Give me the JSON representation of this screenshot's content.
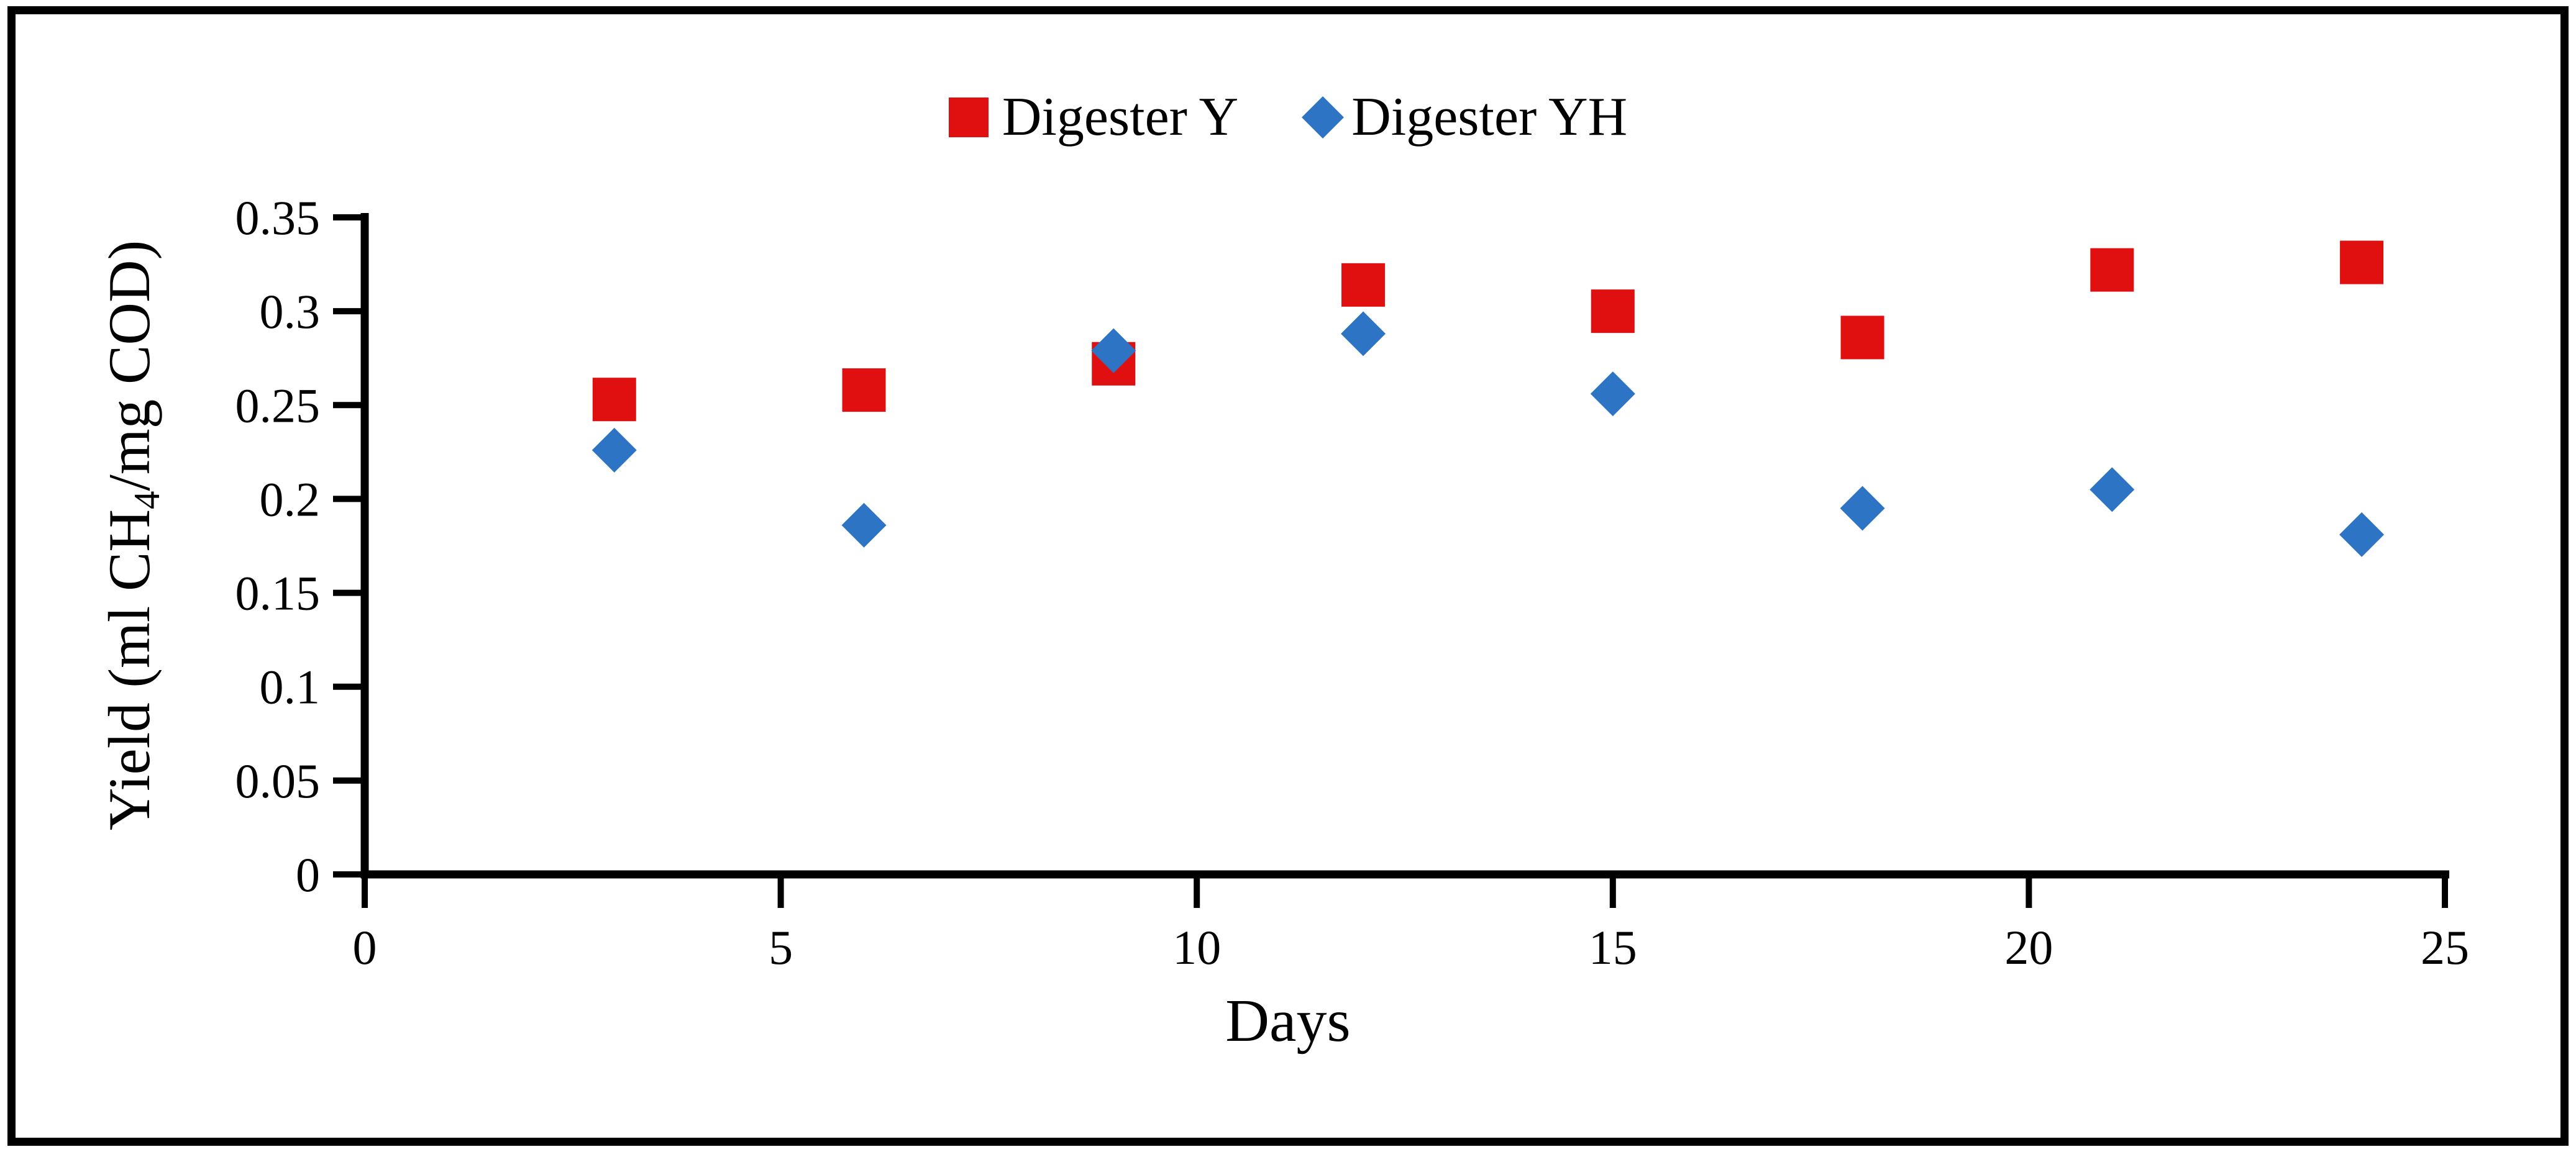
{
  "figure": {
    "background": "#ffffff",
    "border_color": "#000000",
    "axis_color": "#000000",
    "text_color": "#000000"
  },
  "axes": {
    "xlabel": "Days",
    "ylabel": "Yield (ml CH4/mg COD)",
    "ylabel_parts": {
      "pre": "Yield (ml CH",
      "sub": "4",
      "post": "/mg COD)"
    }
  },
  "chart_data": {
    "type": "scatter",
    "title": "",
    "x": [
      3,
      6,
      9,
      12,
      15,
      18,
      21,
      24
    ],
    "series": [
      {
        "name": "Digester Y",
        "marker": "square",
        "color": "#e01010",
        "values": [
          0.253,
          0.258,
          0.272,
          0.314,
          0.3,
          0.286,
          0.322,
          0.326
        ]
      },
      {
        "name": "Digester YH",
        "marker": "diamond",
        "color": "#2e74c4",
        "values": [
          0.226,
          0.186,
          0.279,
          0.288,
          0.256,
          0.195,
          0.205,
          0.181
        ]
      }
    ],
    "xlabel": "Days",
    "ylabel": "Yield (ml CH4/mg COD)",
    "xlim": [
      0,
      25
    ],
    "ylim": [
      0,
      0.35
    ],
    "xticks": [
      0,
      5,
      10,
      15,
      20,
      25
    ],
    "yticks": [
      0,
      0.05,
      0.1,
      0.15,
      0.2,
      0.25,
      0.3,
      0.35
    ],
    "grid": false,
    "legend_position": "top-center"
  }
}
